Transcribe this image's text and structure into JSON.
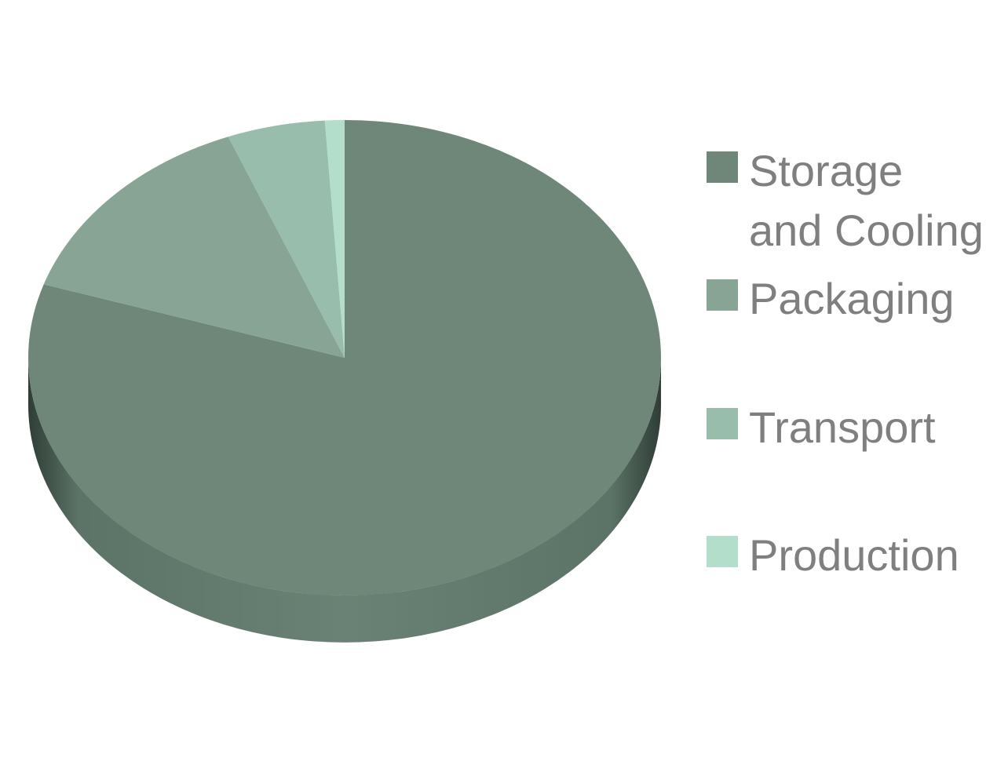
{
  "chart_data": {
    "type": "pie",
    "title": "",
    "series": [
      {
        "name": "",
        "labels": [
          "Storage and Cooling",
          "Packaging",
          "Transport",
          "Production"
        ],
        "values": [
          80,
          14,
          5,
          1
        ],
        "colors": [
          "#6e8779",
          "#87a494",
          "#98bdac",
          "#b3decb"
        ]
      }
    ],
    "legend": {
      "position": "right",
      "entries": [
        "Storage and Cooling",
        "Packaging",
        "Transport",
        "Production"
      ]
    },
    "style": "3d",
    "side_color": "#5c7467"
  }
}
